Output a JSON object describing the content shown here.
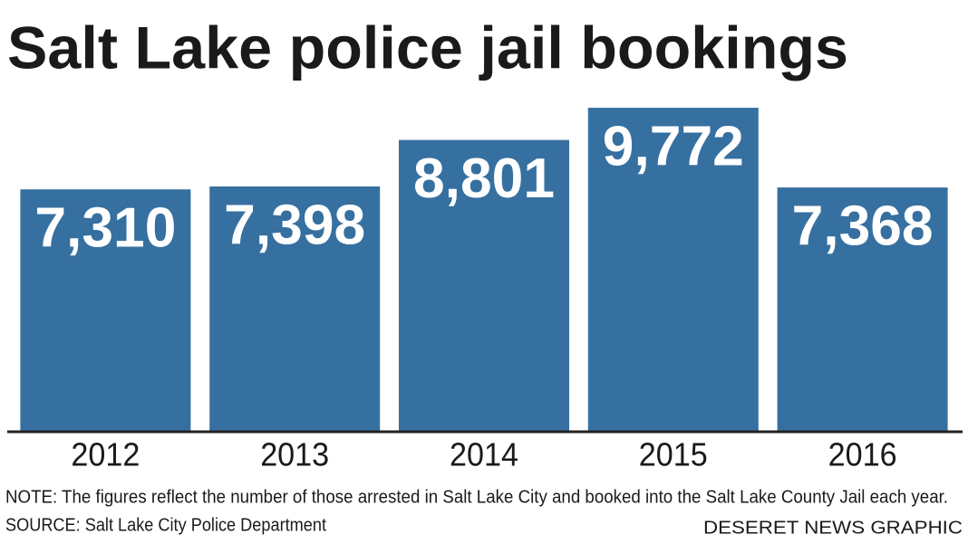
{
  "chart_data": {
    "type": "bar",
    "title": "Salt Lake police jail bookings",
    "categories": [
      "2012",
      "2013",
      "2014",
      "2015",
      "2016"
    ],
    "values": [
      7310,
      7398,
      8801,
      9772,
      7368
    ],
    "value_labels": [
      "7,310",
      "7,398",
      "8,801",
      "9,772",
      "7,368"
    ],
    "color": "#3670a0",
    "ylim": [
      0,
      10000
    ],
    "note": "NOTE: The figures reflect the number of those arrested in Salt Lake City and booked into the Salt Lake County Jail each year.",
    "source": "SOURCE: Salt Lake City Police Department",
    "credit": "DESERET NEWS GRAPHIC"
  }
}
